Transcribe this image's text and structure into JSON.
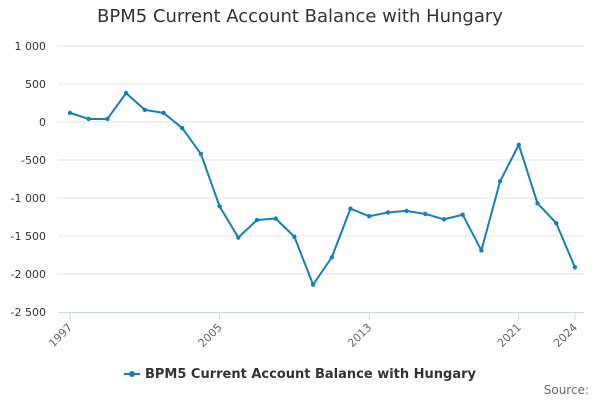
{
  "title": "BPM5 Current Account Balance with Hungary",
  "source_label": "Source:",
  "colors": {
    "series": "#1380b8",
    "grid": "#e6e6e6",
    "axis": "#ccd6eb"
  },
  "chart_data": {
    "type": "line",
    "title": "BPM5 Current Account Balance with Hungary",
    "x": [
      1997,
      1998,
      1999,
      2000,
      2001,
      2002,
      2003,
      2004,
      2005,
      2006,
      2007,
      2008,
      2009,
      2010,
      2011,
      2012,
      2013,
      2014,
      2015,
      2016,
      2017,
      2018,
      2019,
      2020,
      2021,
      2022,
      2023,
      2024
    ],
    "x_tick_labels": [
      "1997",
      "2005",
      "2013",
      "2021",
      "2024"
    ],
    "y_tick_labels": [
      "1 000",
      "500",
      "0",
      "-500",
      "-1 000",
      "-1 500",
      "-2 000",
      "-2 500"
    ],
    "y_ticks": [
      1000,
      500,
      0,
      -500,
      -1000,
      -1500,
      -2000,
      -2500
    ],
    "ylim": [
      -2500,
      1000
    ],
    "xlabel": "",
    "ylabel": "",
    "grid": true,
    "legend": "bottom-center",
    "series": [
      {
        "name": "BPM5 Current Account Balance with Hungary",
        "values": [
          120,
          40,
          40,
          380,
          160,
          120,
          -80,
          -420,
          -1110,
          -1520,
          -1290,
          -1270,
          -1510,
          -2140,
          -1780,
          -1140,
          -1240,
          -1190,
          -1170,
          -1210,
          -1280,
          -1220,
          -1690,
          -780,
          -300,
          -1070,
          -1330,
          -1910
        ]
      }
    ]
  }
}
